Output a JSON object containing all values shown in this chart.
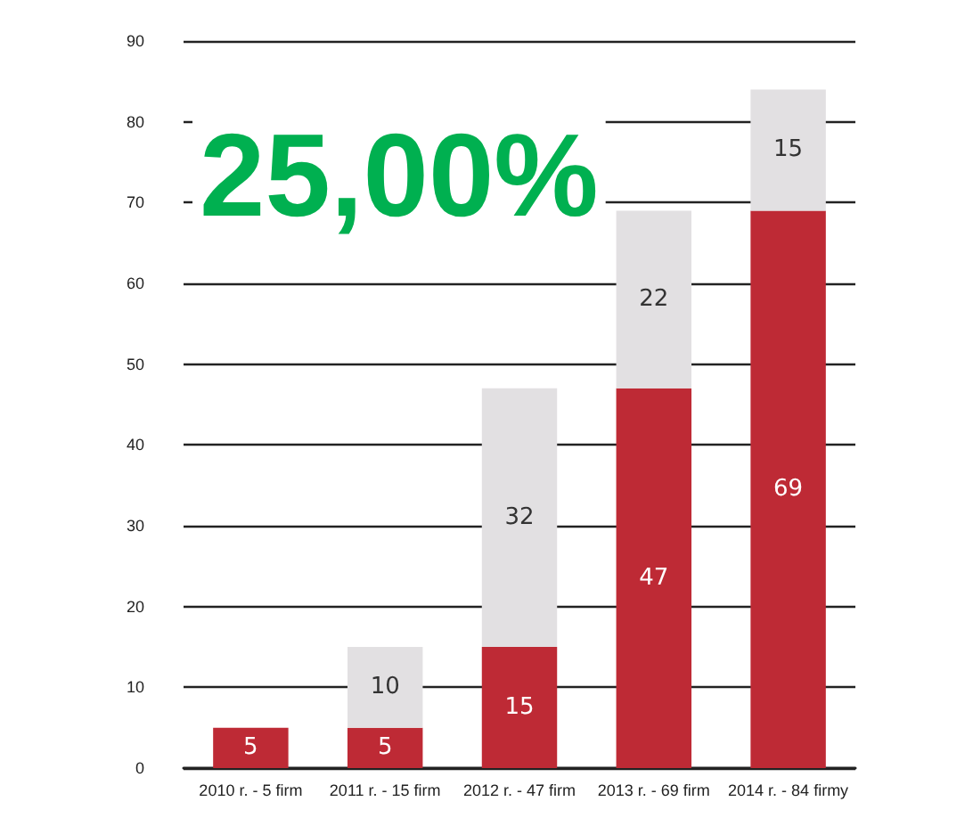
{
  "chart_data": {
    "type": "bar",
    "stacked": true,
    "categories": [
      "2010 r. - 5 firm",
      "2011 r. - 15 firm",
      "2012 r. - 47 firm",
      "2013 r. - 69 firm",
      "2014 r. - 84 firmy"
    ],
    "series": [
      {
        "color": "#be2a35",
        "values": [
          5,
          5,
          15,
          47,
          69
        ],
        "value_labels": [
          "5",
          "5",
          "15",
          "47",
          "69"
        ]
      },
      {
        "color": "#e2e0e2",
        "values": [
          null,
          10,
          32,
          22,
          15
        ],
        "value_labels": [
          null,
          "10",
          "32",
          "22",
          "15"
        ]
      }
    ],
    "ylim": [
      0,
      90
    ],
    "yticks": [
      0,
      10,
      20,
      30,
      40,
      50,
      60,
      70,
      80,
      90
    ],
    "grid": "y",
    "annotations": [
      "25,00%"
    ]
  }
}
